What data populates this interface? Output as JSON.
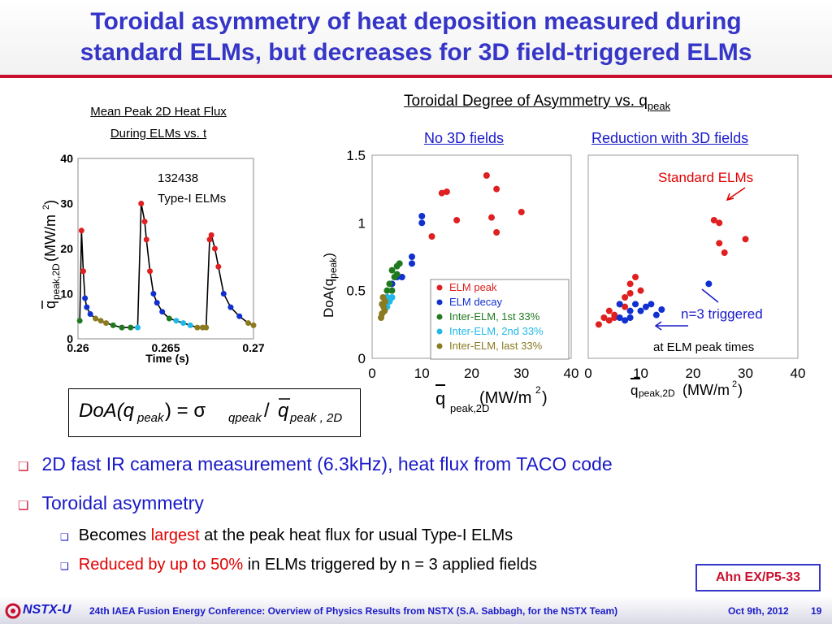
{
  "title": {
    "line1": "Toroidal asymmetry of heat deposition measured during",
    "line2": "standard ELMs, but decreases for 3D field-triggered ELMs"
  },
  "left_panel": {
    "heading1": "Mean Peak 2D Heat Flux",
    "heading2": "During ELMs vs. t",
    "shot": "132438",
    "elm_type": "Type-I ELMs"
  },
  "right_panel": {
    "heading": "Toroidal Degree of Asymmetry vs. q",
    "heading_sub": "peak",
    "col1_heading": "No 3D fields",
    "col2_heading": "Reduction with 3D fields",
    "annotation_standard": "Standard ELMs",
    "annotation_n3": "n=3 triggered",
    "annotation_peak": "at ELM peak times"
  },
  "formula": "DoA(q_peak) = σ_qpeak / q̄_peak,2D",
  "bullets": [
    {
      "text": "2D fast IR camera measurement (6.3kHz), heat flux from TACO code"
    },
    {
      "text": "Toroidal asymmetry"
    }
  ],
  "subbullets": [
    {
      "pre": "Becomes ",
      "em": "largest",
      "post": " at the peak heat flux for usual Type-I ELMs"
    },
    {
      "pre": "",
      "em": "Reduced by up to 50%",
      "post": " in ELMs triggered by n = 3 applied fields"
    }
  ],
  "tag": "Ahn EX/P5-33",
  "footer": {
    "logo": "NSTX-U",
    "conference": "24th IAEA Fusion Energy Conference: Overview of Physics Results from NSTX (S.A. Sabbagh, for the NSTX Team)",
    "date": "Oct 9th, 2012",
    "page": "19"
  },
  "colors": {
    "title": "#3535c8",
    "accent": "#c8102e",
    "elm_peak": "#e02020",
    "elm_decay": "#1030d0",
    "inter1": "#1f7a1f",
    "inter2": "#20b8e8",
    "inter3": "#8a7a20"
  },
  "chart_data": [
    {
      "type": "line",
      "title": "",
      "xlabel": "Time (s)",
      "ylabel": "q̄peak,2D (MW/m²)",
      "xlim": [
        0.26,
        0.27
      ],
      "ylim": [
        0,
        40
      ],
      "xticks": [
        "0.26",
        "0.265",
        "0.27"
      ],
      "yticks": [
        "0",
        "10",
        "20",
        "30",
        "40"
      ],
      "series": [
        {
          "name": "trace",
          "x": [
            0.2601,
            0.2602,
            0.2603,
            0.2604,
            0.2605,
            0.2607,
            0.261,
            0.2613,
            0.2616,
            0.262,
            0.2625,
            0.263,
            0.2634,
            0.2636,
            0.2638,
            0.2639,
            0.2641,
            0.2643,
            0.2645,
            0.2648,
            0.2652,
            0.2656,
            0.266,
            0.2664,
            0.2668,
            0.2671,
            0.2673,
            0.2675,
            0.2676,
            0.2678,
            0.268,
            0.2683,
            0.2687,
            0.2692,
            0.2697,
            0.27
          ],
          "y": [
            4,
            24,
            15,
            9,
            7,
            5.5,
            4.5,
            4,
            3.5,
            3,
            2.5,
            2.5,
            2.5,
            30,
            26,
            22,
            15,
            10,
            8,
            6,
            4.5,
            4,
            3.5,
            3,
            2.5,
            2.5,
            2.5,
            22,
            23,
            20,
            16,
            10,
            7,
            5,
            3.5,
            3
          ]
        }
      ],
      "markers": {
        "ELM peak": "red",
        "ELM decay": "blue",
        "Inter-ELM, 1st 33%": "green",
        "Inter-ELM, 2nd 33%": "cyan",
        "Inter-ELM, last 33%": "olive"
      }
    },
    {
      "type": "scatter",
      "title": "No 3D fields",
      "xlabel": "q̄peak,2D (MW/m²)",
      "ylabel": "DoA(qpeak)",
      "xlim": [
        0,
        40
      ],
      "ylim": [
        0,
        1.5
      ],
      "xticks": [
        "0",
        "10",
        "20",
        "30",
        "40"
      ],
      "yticks": [
        "0",
        "0.5",
        "1",
        "1.5"
      ],
      "legend": [
        "ELM peak",
        "ELM decay",
        "Inter-ELM, 1st 33%",
        "Inter-ELM, 2nd 33%",
        "Inter-ELM, last 33%"
      ],
      "series": [
        {
          "name": "ELM peak",
          "points": [
            [
              12,
              0.9
            ],
            [
              14,
              1.22
            ],
            [
              15,
              1.23
            ],
            [
              17,
              1.02
            ],
            [
              23,
              1.35
            ],
            [
              24,
              1.04
            ],
            [
              25,
              0.93
            ],
            [
              25,
              1.25
            ],
            [
              30,
              1.08
            ]
          ]
        },
        {
          "name": "ELM decay",
          "points": [
            [
              6,
              0.6
            ],
            [
              8,
              0.7
            ],
            [
              8,
              0.75
            ],
            [
              10,
              1.05
            ],
            [
              10,
              1.0
            ],
            [
              4,
              0.55
            ],
            [
              3,
              0.45
            ],
            [
              5,
              0.6
            ]
          ]
        },
        {
          "name": "Inter-ELM, 1st 33%",
          "points": [
            [
              4,
              0.65
            ],
            [
              5,
              0.68
            ],
            [
              4.5,
              0.6
            ],
            [
              3.5,
              0.55
            ],
            [
              5.5,
              0.7
            ],
            [
              4,
              0.5
            ],
            [
              3,
              0.5
            ],
            [
              5,
              0.62
            ]
          ]
        },
        {
          "name": "Inter-ELM, 2nd 33%",
          "points": [
            [
              3,
              0.45
            ],
            [
              3.5,
              0.42
            ],
            [
              2.5,
              0.4
            ],
            [
              4,
              0.45
            ],
            [
              3,
              0.38
            ]
          ]
        },
        {
          "name": "Inter-ELM, last 33%",
          "points": [
            [
              2,
              0.4
            ],
            [
              2.5,
              0.35
            ],
            [
              2,
              0.33
            ],
            [
              2.3,
              0.38
            ],
            [
              1.8,
              0.3
            ],
            [
              2.6,
              0.42
            ],
            [
              2.2,
              0.45
            ]
          ]
        }
      ]
    },
    {
      "type": "scatter",
      "title": "Reduction with 3D fields",
      "xlabel": "q̄peak,2D (MW/m²)",
      "ylabel": "",
      "xlim": [
        0,
        40
      ],
      "ylim": [
        0,
        1.5
      ],
      "xticks": [
        "0",
        "10",
        "20",
        "30",
        "40"
      ],
      "series": [
        {
          "name": "ELM peak",
          "points": [
            [
              2,
              0.25
            ],
            [
              3,
              0.3
            ],
            [
              4,
              0.35
            ],
            [
              5,
              0.32
            ],
            [
              6,
              0.4
            ],
            [
              7,
              0.45
            ],
            [
              8,
              0.55
            ],
            [
              9,
              0.6
            ],
            [
              10,
              0.5
            ],
            [
              7,
              0.38
            ],
            [
              4,
              0.28
            ],
            [
              24,
              1.02
            ],
            [
              25,
              1.0
            ],
            [
              25,
              0.85
            ],
            [
              26,
              0.78
            ],
            [
              30,
              0.88
            ],
            [
              5,
              0.3
            ],
            [
              8,
              0.48
            ]
          ]
        },
        {
          "name": "ELM decay",
          "points": [
            [
              6,
              0.3
            ],
            [
              7,
              0.28
            ],
            [
              8,
              0.35
            ],
            [
              9,
              0.4
            ],
            [
              10,
              0.35
            ],
            [
              11,
              0.38
            ],
            [
              12,
              0.4
            ],
            [
              13,
              0.32
            ],
            [
              14,
              0.36
            ],
            [
              23,
              0.55
            ],
            [
              6,
              0.4
            ],
            [
              8,
              0.3
            ]
          ]
        }
      ]
    }
  ]
}
